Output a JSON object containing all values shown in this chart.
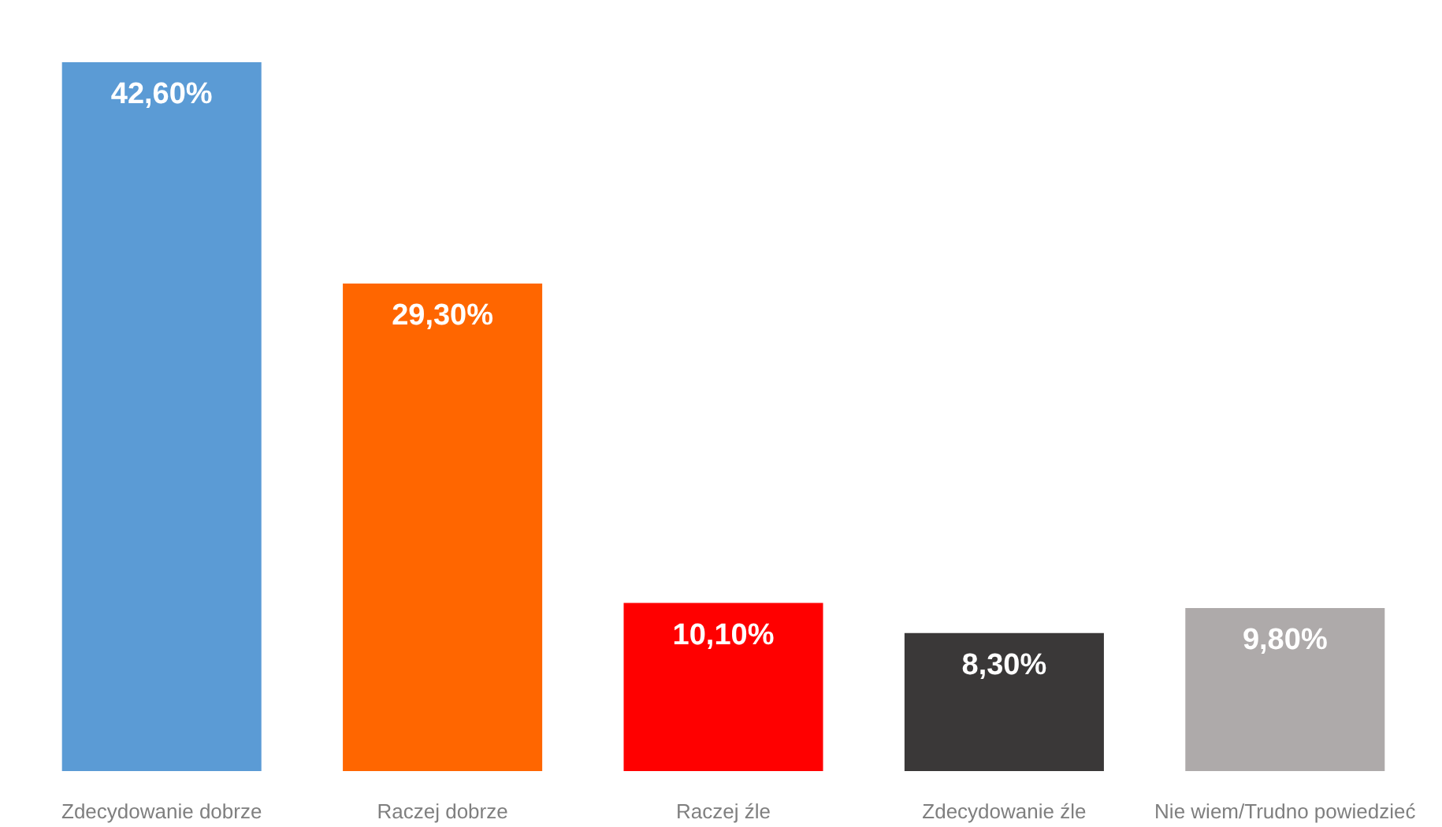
{
  "chart_data": {
    "type": "bar",
    "categories": [
      "Zdecydowanie dobrze",
      "Raczej dobrze",
      "Raczej źle",
      "Zdecydowanie źle",
      "Nie wiem/Trudno powiedzieć"
    ],
    "values": [
      42.6,
      29.3,
      10.1,
      8.3,
      9.8
    ],
    "value_labels": [
      "42,60%",
      "29,30%",
      "10,10%",
      "8,30%",
      "9,80%"
    ],
    "colors": [
      "#5b9bd5",
      "#ff6600",
      "#ff0000",
      "#3a3838",
      "#aeaaaa"
    ],
    "grid": false
  }
}
